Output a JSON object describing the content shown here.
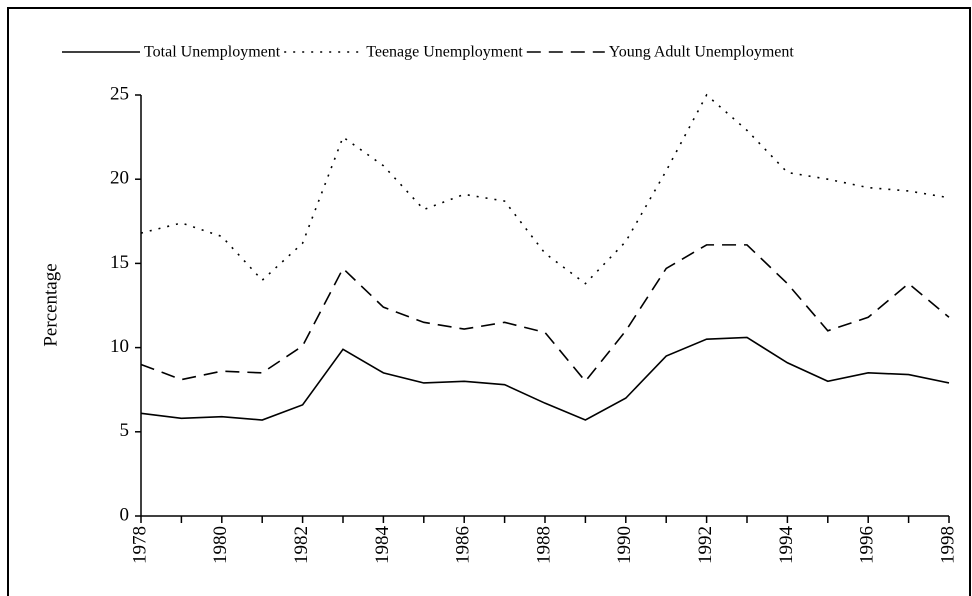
{
  "chart_data": {
    "type": "line",
    "y_label": "Percentage",
    "x": [
      1978,
      1979,
      1980,
      1981,
      1982,
      1983,
      1984,
      1985,
      1986,
      1987,
      1988,
      1989,
      1990,
      1991,
      1992,
      1993,
      1994,
      1995,
      1996,
      1997,
      1998
    ],
    "series": [
      {
        "name": "Total Unemployment",
        "color": "#000000",
        "dash": "solid",
        "values": [
          6.1,
          5.8,
          5.9,
          5.7,
          6.6,
          9.9,
          8.5,
          7.9,
          8.0,
          7.8,
          6.7,
          5.7,
          7.0,
          9.5,
          10.5,
          10.6,
          9.1,
          8.0,
          8.5,
          8.4,
          7.9
        ]
      },
      {
        "name": "Teenage Unemployment",
        "color": "#000000",
        "dash": "dotted",
        "values": [
          16.8,
          17.4,
          16.6,
          14.0,
          16.2,
          22.5,
          20.8,
          18.2,
          19.1,
          18.7,
          15.6,
          13.8,
          16.3,
          20.5,
          25.0,
          22.9,
          20.4,
          20.0,
          19.5,
          19.3,
          18.9
        ]
      },
      {
        "name": "Young Adult Unemployment",
        "color": "#000000",
        "dash": "dashed",
        "values": [
          9.0,
          8.1,
          8.6,
          8.5,
          10.1,
          14.7,
          12.4,
          11.5,
          11.1,
          11.5,
          10.9,
          8.0,
          11.0,
          14.7,
          16.1,
          16.1,
          13.8,
          11.0,
          11.8,
          13.8,
          11.8
        ]
      }
    ],
    "xlim": [
      1978,
      1998
    ],
    "xticks": [
      1978,
      1980,
      1982,
      1984,
      1986,
      1988,
      1990,
      1992,
      1994,
      1996,
      1998
    ],
    "ylim": [
      0,
      25
    ],
    "yticks": [
      0,
      5,
      10,
      15,
      20,
      25
    ],
    "legend": "top"
  }
}
